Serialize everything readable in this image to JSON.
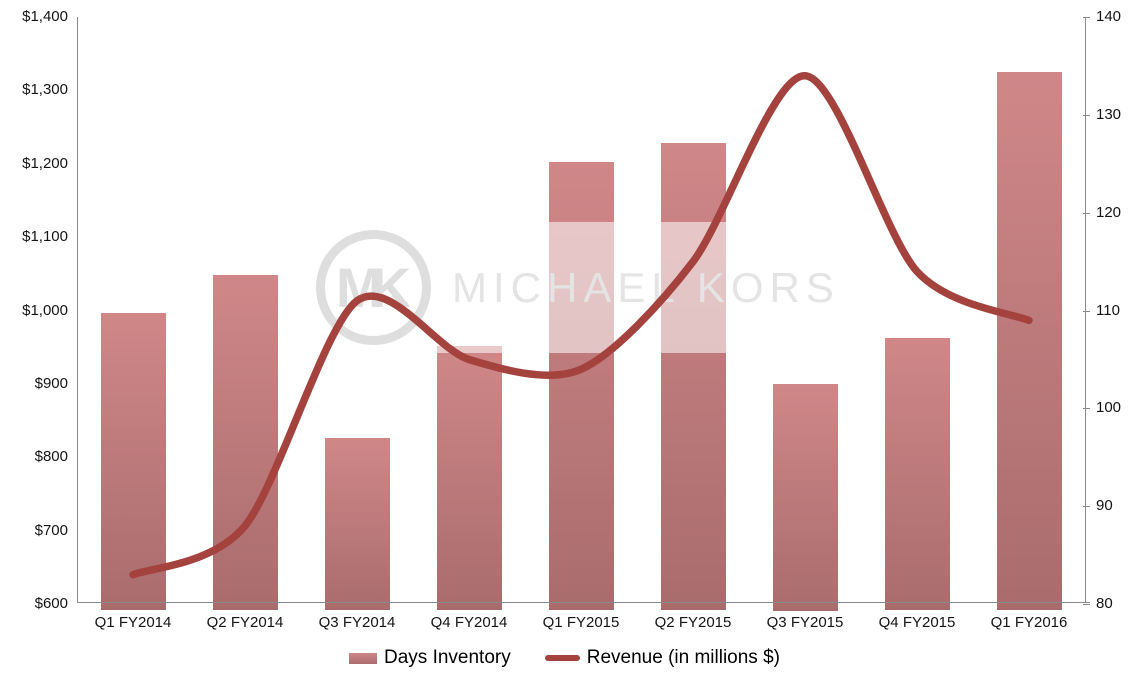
{
  "chart_data": {
    "type": "combo",
    "title": "",
    "categories": [
      "Q1 FY2014",
      "Q2 FY2014",
      "Q3 FY2014",
      "Q4 FY2014",
      "Q1 FY2015",
      "Q2 FY2015",
      "Q3 FY2015",
      "Q4 FY2015",
      "Q1 FY2016"
    ],
    "series": [
      {
        "name": "Days Inventory",
        "type": "bar",
        "axis": "left",
        "values": [
          997,
          1049,
          826,
          952,
          1203,
          1228,
          900,
          962,
          1325
        ]
      },
      {
        "name": "Revenue (in millions $)",
        "type": "line",
        "axis": "right",
        "values": [
          83,
          88,
          111,
          105,
          104,
          115,
          134,
          114,
          109
        ]
      }
    ],
    "left_axis": {
      "min": 600,
      "max": 1400,
      "step": 100,
      "tick_labels": [
        "$1,400",
        "$1,300",
        "$1,200",
        "$1,100",
        "$1,000",
        "$900",
        "$800",
        "$700",
        "$600"
      ]
    },
    "right_axis": {
      "min": 80,
      "max": 140,
      "step": 10,
      "tick_labels": [
        "140",
        "130",
        "120",
        "110",
        "100",
        "90",
        "80"
      ]
    },
    "grid": "off",
    "legend_position": "bottom",
    "line_smooth": true
  },
  "legend": {
    "items": [
      {
        "label": "Days Inventory",
        "swatch": "bar"
      },
      {
        "label": "Revenue (in millions $)",
        "swatch": "line"
      }
    ]
  },
  "watermark": {
    "logo_text": "MK",
    "brand_text": "MICHAEL KORS"
  },
  "colors": {
    "bar_top": "#d08788",
    "bar_bottom": "#a96c6d",
    "line": "#a4423e",
    "axis": "#8a8a8a",
    "text": "#141414",
    "watermark_gray": "#dedede",
    "watermark_text": "#e4e4e4",
    "watermark_veil": "rgba(255,255,255,0.55)"
  }
}
